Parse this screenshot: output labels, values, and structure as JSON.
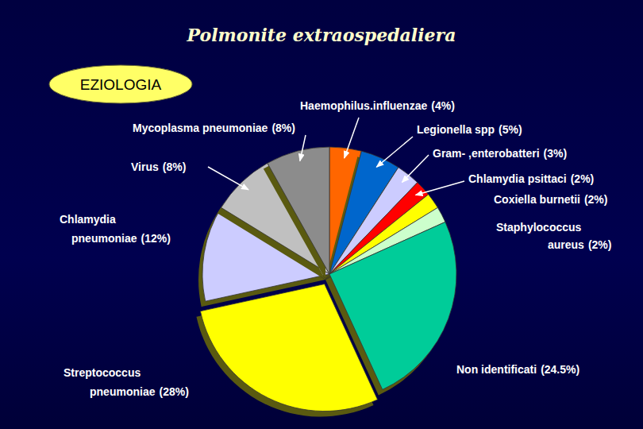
{
  "chart_data": {
    "type": "pie",
    "title": "Polmonite extraospedaliera",
    "subtitle": "EZIOLOGIA",
    "categories": [
      "Haemophilus.influenzae",
      "Legionella spp",
      "Gram- ,enterobatteri",
      "Chlamydia psittaci",
      "Coxiella burnetii",
      "Staphylococcus aureus",
      "Non identificati",
      "Streptococcus pneumoniae",
      "Chlamydia pneumoniae",
      "Virus",
      "Mycoplasma pneumoniae"
    ],
    "values": [
      4,
      5,
      3,
      2,
      2,
      2,
      24.5,
      28,
      12,
      8,
      8
    ],
    "value_labels": [
      "(4%)",
      "(5%)",
      "(3%)",
      "(2%)",
      "(2%)",
      "(2%)",
      "(24.5%)",
      "(28%)",
      "(12%)",
      "(8%)",
      "(8%)"
    ],
    "colors": [
      "#ff6600",
      "#0066cc",
      "#ccccff",
      "#ff0000",
      "#ffff00",
      "#ccffcc",
      "#00cc99",
      "#ffff00",
      "#ccccff",
      "#c0c0c0",
      "#8c8c8c"
    ],
    "data_labels": true
  }
}
